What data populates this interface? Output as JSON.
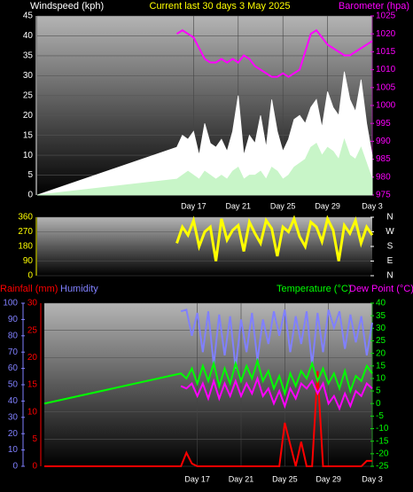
{
  "chart_data": [
    {
      "type": "line",
      "title": "Current last 30 days 3 May 2025",
      "x": [
        0,
        12.5,
        13,
        13.5,
        14,
        14.5,
        15,
        15.5,
        16,
        16.5,
        17,
        17.5,
        18,
        18.5,
        19,
        19.5,
        20,
        20.5,
        21,
        21.5,
        22,
        22.5,
        23,
        23.5,
        24,
        24.5,
        25,
        25.5,
        26,
        26.5,
        27,
        27.5,
        28,
        28.5,
        29,
        29.5,
        30
      ],
      "xlim": [
        0,
        30
      ],
      "xticks": [
        {
          "value": 14,
          "label": "Day 17"
        },
        {
          "value": 18,
          "label": "Day 21"
        },
        {
          "value": 22,
          "label": "Day 25"
        },
        {
          "value": 26,
          "label": "Day 29"
        },
        {
          "value": 30,
          "label": "Day 3"
        }
      ],
      "ylim": [
        0,
        45
      ],
      "yticks": [
        0,
        5,
        10,
        15,
        20,
        25,
        30,
        35,
        40,
        45
      ],
      "y2lim": [
        975,
        1025
      ],
      "y2ticks": [
        975,
        980,
        985,
        990,
        995,
        1000,
        1005,
        1010,
        1015,
        1020,
        1025
      ],
      "grid": true,
      "series": [
        {
          "name": "Windspeed (kph)",
          "color": "#ffffff",
          "kind": "area",
          "values": [
            0,
            12,
            15,
            14,
            16,
            10,
            18,
            13,
            12,
            14,
            11,
            16,
            25,
            10,
            15,
            13,
            20,
            12,
            24,
            16,
            11,
            14,
            19,
            20,
            18,
            22,
            24,
            17,
            26,
            22,
            20,
            31,
            24,
            21,
            29,
            18,
            10
          ]
        },
        {
          "color": "#c8f5c8",
          "kind": "area",
          "values": [
            0,
            4,
            5,
            6,
            5,
            4,
            6,
            5,
            4,
            5,
            4,
            6,
            7,
            4,
            5,
            5,
            6,
            4,
            7,
            6,
            4,
            5,
            7,
            8,
            9,
            12,
            13,
            10,
            12,
            11,
            9,
            14,
            10,
            9,
            12,
            8,
            4
          ]
        },
        {
          "name": "Barometer (hpa)",
          "color": "#ff00ff",
          "kind": "line",
          "axis": "y2",
          "values": [
            null,
            1020,
            1021,
            1020,
            1019,
            1016,
            1013,
            1012,
            1012,
            1013,
            1012,
            1013,
            1012,
            1014,
            1013,
            1011,
            1010,
            1009,
            1008,
            1008,
            1009,
            1008,
            1009,
            1010,
            1015,
            1020,
            1021,
            1019,
            1017,
            1016,
            1015,
            1014,
            1014,
            1015,
            1016,
            1017,
            1018
          ]
        }
      ]
    },
    {
      "type": "line",
      "x": [
        0,
        12.5,
        13,
        13.5,
        14,
        14.5,
        15,
        15.5,
        16,
        16.5,
        17,
        17.5,
        18,
        18.5,
        19,
        19.5,
        20,
        20.5,
        21,
        21.5,
        22,
        22.5,
        23,
        23.5,
        24,
        24.5,
        25,
        25.5,
        26,
        26.5,
        27,
        27.5,
        28,
        28.5,
        29,
        29.5,
        30
      ],
      "xlim": [
        0,
        30
      ],
      "ylim": [
        0,
        360
      ],
      "yticks": [
        0,
        90,
        180,
        270,
        360
      ],
      "y2lim": [
        0,
        360
      ],
      "y2ticks": [
        {
          "value": 0,
          "label": "N"
        },
        {
          "value": 90,
          "label": "E"
        },
        {
          "value": 180,
          "label": "S"
        },
        {
          "value": 270,
          "label": "W"
        },
        {
          "value": 360,
          "label": "N"
        }
      ],
      "grid": true,
      "series": [
        {
          "color": "#ffff00",
          "kind": "line",
          "values": [
            null,
            200,
            300,
            250,
            340,
            180,
            270,
            300,
            90,
            350,
            220,
            280,
            310,
            150,
            330,
            260,
            200,
            340,
            290,
            120,
            300,
            270,
            350,
            240,
            180,
            330,
            300,
            210,
            350,
            280,
            90,
            310,
            260,
            340,
            200,
            300,
            250
          ]
        }
      ]
    },
    {
      "type": "line",
      "x": [
        0,
        12.5,
        13,
        13.5,
        14,
        14.5,
        15,
        15.5,
        16,
        16.5,
        17,
        17.5,
        18,
        18.5,
        19,
        19.5,
        20,
        20.5,
        21,
        21.5,
        22,
        22.5,
        23,
        23.5,
        24,
        24.5,
        25,
        25.5,
        26,
        26.5,
        27,
        27.5,
        28,
        28.5,
        29,
        29.5,
        30
      ],
      "xlim": [
        0,
        30
      ],
      "xticks": [
        {
          "value": 14,
          "label": "Day 17"
        },
        {
          "value": 18,
          "label": "Day 21"
        },
        {
          "value": 22,
          "label": "Day 25"
        },
        {
          "value": 26,
          "label": "Day 29"
        },
        {
          "value": 30,
          "label": "Day 3"
        }
      ],
      "ylim": [
        0,
        30
      ],
      "yticks": [
        0,
        5,
        10,
        15,
        20,
        25,
        30
      ],
      "y3lim": [
        0,
        100
      ],
      "y3ticks": [
        0,
        10,
        20,
        30,
        40,
        50,
        60,
        70,
        80,
        90,
        100
      ],
      "y2lim": [
        -25,
        40
      ],
      "y2ticks": [
        -25,
        -20,
        -15,
        -10,
        -5,
        0,
        5,
        10,
        15,
        20,
        25,
        30,
        35,
        40
      ],
      "grid": true,
      "series": [
        {
          "name": "Rainfall (mm)",
          "color": "#ff0000",
          "kind": "line",
          "values": [
            0,
            0,
            2.5,
            0.5,
            0,
            0,
            0,
            0,
            0,
            0,
            0,
            0,
            0,
            0,
            0,
            0,
            0,
            0,
            0,
            0,
            8,
            4,
            0,
            4.5,
            0,
            0,
            17.5,
            0,
            0,
            0,
            0,
            0,
            0,
            0,
            0,
            1,
            1
          ]
        },
        {
          "name": "Humidity",
          "color": "#8080ff",
          "kind": "line",
          "axis": "y3",
          "values": [
            null,
            95,
            96,
            80,
            94,
            70,
            95,
            62,
            93,
            68,
            92,
            60,
            90,
            70,
            94,
            65,
            90,
            75,
            95,
            80,
            96,
            70,
            92,
            75,
            95,
            62,
            94,
            70,
            96,
            85,
            95,
            72,
            93,
            76,
            92,
            68,
            88
          ]
        },
        {
          "name": "Temperature (°C)",
          "color": "#00ff00",
          "kind": "line",
          "axis": "y2",
          "values": [
            0,
            12,
            10,
            14,
            8,
            15,
            9,
            16,
            7,
            14,
            8,
            16,
            9,
            15,
            10,
            17,
            9,
            13,
            6,
            11,
            4,
            12,
            7,
            13,
            10,
            16,
            9,
            14,
            8,
            12,
            6,
            13,
            5,
            11,
            9,
            15,
            12
          ]
        },
        {
          "name": "Dew Point (°C)",
          "color": "#ff00ff",
          "kind": "line",
          "axis": "y2",
          "values": [
            null,
            7,
            6,
            8,
            3,
            8,
            2,
            9,
            2,
            8,
            3,
            9,
            3,
            8,
            4,
            10,
            3,
            6,
            0,
            5,
            -1,
            6,
            2,
            8,
            6,
            9,
            4,
            8,
            0,
            3,
            -2,
            4,
            -1,
            5,
            3,
            8,
            6
          ]
        }
      ]
    }
  ]
}
